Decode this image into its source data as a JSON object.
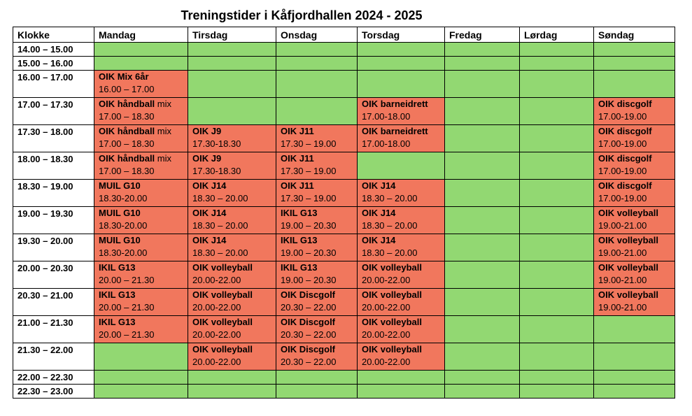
{
  "title": "Treningstider i Kåfjordhallen 2024 - 2025",
  "colors": {
    "free": "#92d872",
    "booked": "#f1775d"
  },
  "header": [
    "Klokke",
    "Mandag",
    "Tirsdag",
    "Onsdag",
    "Torsdag",
    "Fredag",
    "Lørdag",
    "Søndag"
  ],
  "rows": [
    {
      "time": "14.00 – 15.00",
      "cells": [
        {
          "s": "free"
        },
        {
          "s": "free"
        },
        {
          "s": "free"
        },
        {
          "s": "free"
        },
        {
          "s": "free"
        },
        {
          "s": "free"
        },
        {
          "s": "free"
        }
      ]
    },
    {
      "time": "15.00 – 16.00",
      "cells": [
        {
          "s": "free"
        },
        {
          "s": "free"
        },
        {
          "s": "free"
        },
        {
          "s": "free"
        },
        {
          "s": "free"
        },
        {
          "s": "free"
        },
        {
          "s": "free"
        }
      ]
    },
    {
      "time": "16.00 – 17.00",
      "cells": [
        {
          "s": "booked",
          "name": "OIK Mix 6år",
          "time": "16.00 – 17.00"
        },
        {
          "s": "free"
        },
        {
          "s": "free"
        },
        {
          "s": "free"
        },
        {
          "s": "free"
        },
        {
          "s": "free"
        },
        {
          "s": "free"
        }
      ]
    },
    {
      "time": "17.00 – 17.30",
      "cells": [
        {
          "s": "booked",
          "name": "OIK håndball",
          "suffix": "mix",
          "time": "17.00 – 18.30"
        },
        {
          "s": "free"
        },
        {
          "s": "free"
        },
        {
          "s": "booked",
          "name": "OIK barneidrett",
          "time": "17.00-18.00"
        },
        {
          "s": "free"
        },
        {
          "s": "free"
        },
        {
          "s": "booked",
          "name": "OIK discgolf",
          "time": "17.00-19.00"
        }
      ]
    },
    {
      "time": "17.30 – 18.00",
      "cells": [
        {
          "s": "booked",
          "name": "OIK håndball",
          "suffix": "mix",
          "time": "17.00 – 18.30"
        },
        {
          "s": "booked",
          "name": "OIK J9",
          "time": "17.30-18.30"
        },
        {
          "s": "booked",
          "name": "OIK J11",
          "time": "17.30 – 19.00"
        },
        {
          "s": "booked",
          "name": "OIK barneidrett",
          "time": "17.00-18.00"
        },
        {
          "s": "free"
        },
        {
          "s": "free"
        },
        {
          "s": "booked",
          "name": "OIK discgolf",
          "time": "17.00-19.00"
        }
      ]
    },
    {
      "time": "18.00 – 18.30",
      "cells": [
        {
          "s": "booked",
          "name": "OIK håndball",
          "suffix": "mix",
          "time": "17.00 – 18.30"
        },
        {
          "s": "booked",
          "name": "OIK J9",
          "time": "17.30-18.30"
        },
        {
          "s": "booked",
          "name": "OIK J11",
          "time": "17.30 – 19.00"
        },
        {
          "s": "free"
        },
        {
          "s": "free"
        },
        {
          "s": "free"
        },
        {
          "s": "booked",
          "name": "OIK discgolf",
          "time": "17.00-19.00"
        }
      ]
    },
    {
      "time": "18.30 – 19.00",
      "cells": [
        {
          "s": "booked",
          "name": "MUIL G10",
          "time": "18.30-20.00"
        },
        {
          "s": "booked",
          "name": "OIK J14",
          "time": "18.30 – 20.00"
        },
        {
          "s": "booked",
          "name": "OIK J11",
          "time": "17.30 – 19.00"
        },
        {
          "s": "booked",
          "name": "OIK J14",
          "time": "18.30 – 20.00"
        },
        {
          "s": "free"
        },
        {
          "s": "free"
        },
        {
          "s": "booked",
          "name": "OIK discgolf",
          "time": "17.00-19.00"
        }
      ]
    },
    {
      "time": "19.00 – 19.30",
      "cells": [
        {
          "s": "booked",
          "name": "MUIL G10",
          "time": "18.30-20.00"
        },
        {
          "s": "booked",
          "name": "OIK J14",
          "time": "18.30 – 20.00"
        },
        {
          "s": "booked",
          "name": "IKIL G13",
          "time": "19.00 – 20.30"
        },
        {
          "s": "booked",
          "name": "OIK J14",
          "time": "18.30 – 20.00"
        },
        {
          "s": "free"
        },
        {
          "s": "free"
        },
        {
          "s": "booked",
          "name": "OIK volleyball",
          "time": "19.00-21.00"
        }
      ]
    },
    {
      "time": "19.30 – 20.00",
      "cells": [
        {
          "s": "booked",
          "name": "MUIL G10",
          "time": "18.30-20.00"
        },
        {
          "s": "booked",
          "name": "OIK J14",
          "time": "18.30 – 20.00"
        },
        {
          "s": "booked",
          "name": "IKIL G13",
          "time": "19.00 – 20.30"
        },
        {
          "s": "booked",
          "name": "OIK J14",
          "time": "18.30 – 20.00"
        },
        {
          "s": "free"
        },
        {
          "s": "free"
        },
        {
          "s": "booked",
          "name": "OIK volleyball",
          "time": "19.00-21.00"
        }
      ]
    },
    {
      "time": "20.00 – 20.30",
      "cells": [
        {
          "s": "booked",
          "name": "IKIL G13",
          "time": "20.00 – 21.30"
        },
        {
          "s": "booked",
          "name": "OIK volleyball",
          "time": "20.00-22.00"
        },
        {
          "s": "booked",
          "name": "IKIL G13",
          "time": "19.00 – 20.30"
        },
        {
          "s": "booked",
          "name": "OIK volleyball",
          "time": "20.00-22.00"
        },
        {
          "s": "free"
        },
        {
          "s": "free"
        },
        {
          "s": "booked",
          "name": "OIK volleyball",
          "time": "19.00-21.00"
        }
      ]
    },
    {
      "time": "20.30 – 21.00",
      "cells": [
        {
          "s": "booked",
          "name": "IKIL G13",
          "time": "20.00 – 21.30"
        },
        {
          "s": "booked",
          "name": "OIK volleyball",
          "time": "20.00-22.00"
        },
        {
          "s": "booked",
          "name": "OIK Discgolf",
          "time": "20.30 – 22.00"
        },
        {
          "s": "booked",
          "name": "OIK volleyball",
          "time": "20.00-22.00"
        },
        {
          "s": "free"
        },
        {
          "s": "free"
        },
        {
          "s": "booked",
          "name": "OIK volleyball",
          "time": "19.00-21.00"
        }
      ]
    },
    {
      "time": "21.00 – 21.30",
      "cells": [
        {
          "s": "booked",
          "name": "IKIL G13",
          "time": "20.00 – 21.30"
        },
        {
          "s": "booked",
          "name": "OIK volleyball",
          "time": "20.00-22.00"
        },
        {
          "s": "booked",
          "name": "OIK Discgolf",
          "time": "20.30 – 22.00"
        },
        {
          "s": "booked",
          "name": "OIK volleyball",
          "time": "20.00-22.00"
        },
        {
          "s": "free"
        },
        {
          "s": "free"
        },
        {
          "s": "free"
        }
      ]
    },
    {
      "time": "21.30 – 22.00",
      "cells": [
        {
          "s": "free"
        },
        {
          "s": "booked",
          "name": "OIK volleyball",
          "time": "20.00-22.00"
        },
        {
          "s": "booked",
          "name": "OIK Discgolf",
          "time": "20.30 – 22.00"
        },
        {
          "s": "booked",
          "name": "OIK volleyball",
          "time": "20.00-22.00"
        },
        {
          "s": "free"
        },
        {
          "s": "free"
        },
        {
          "s": "free"
        }
      ]
    },
    {
      "time": "22.00 – 22.30",
      "cells": [
        {
          "s": "free"
        },
        {
          "s": "free"
        },
        {
          "s": "free"
        },
        {
          "s": "free"
        },
        {
          "s": "free"
        },
        {
          "s": "free"
        },
        {
          "s": "free"
        }
      ]
    },
    {
      "time": "22.30 – 23.00",
      "cells": [
        {
          "s": "free"
        },
        {
          "s": "free"
        },
        {
          "s": "free"
        },
        {
          "s": "free"
        },
        {
          "s": "free"
        },
        {
          "s": "free"
        },
        {
          "s": "free"
        }
      ]
    }
  ]
}
